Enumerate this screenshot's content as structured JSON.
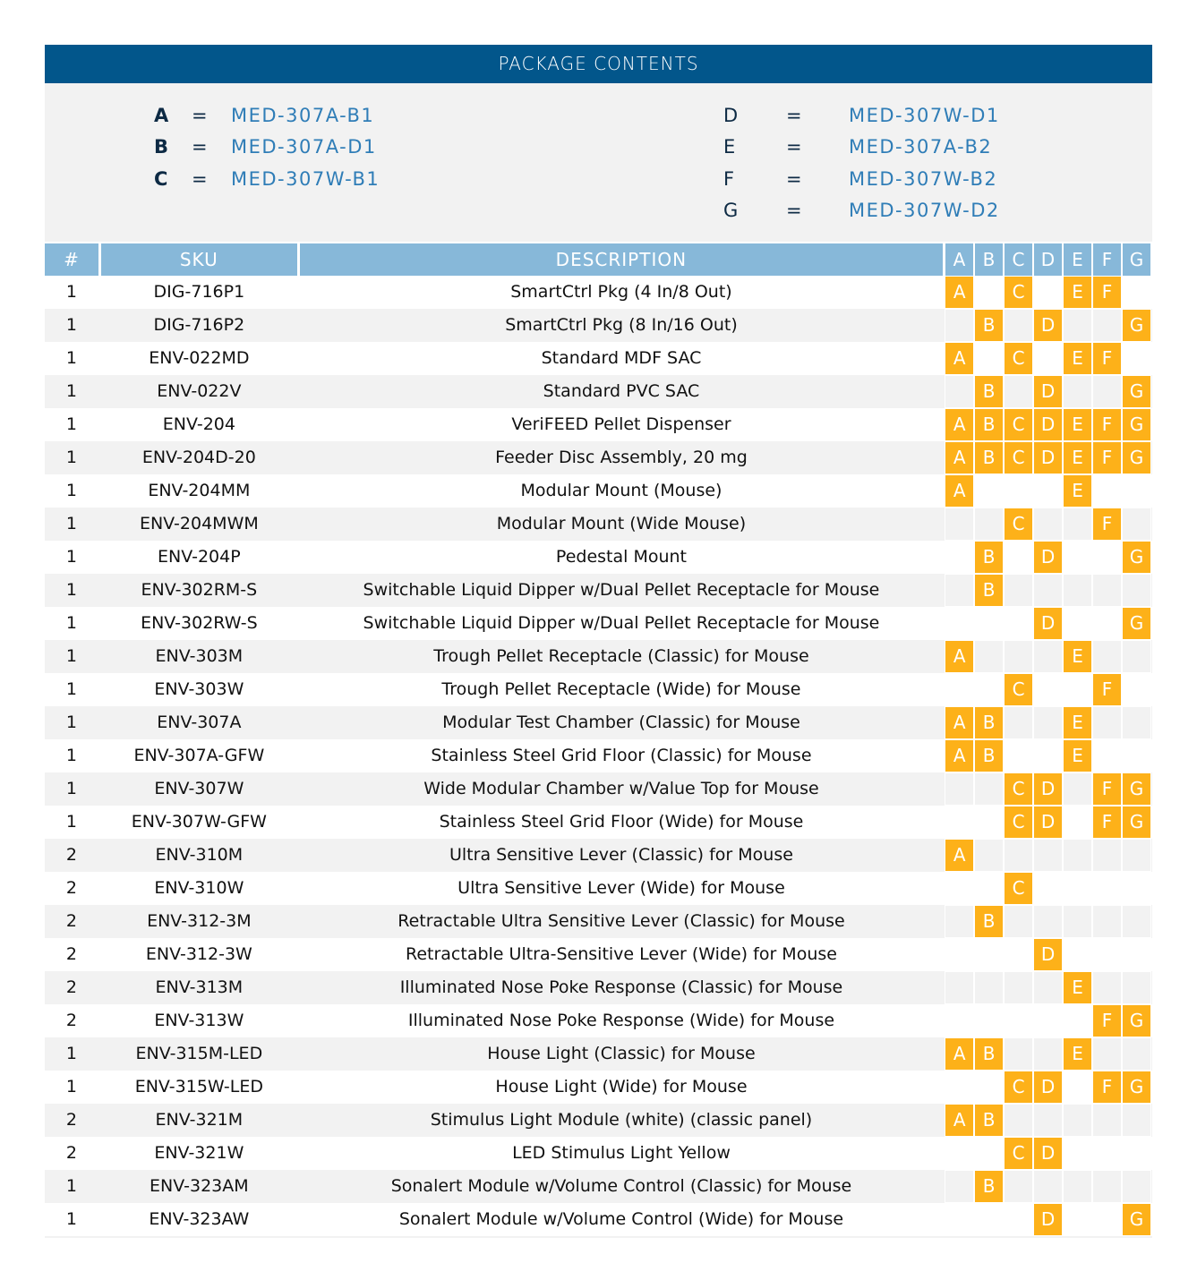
{
  "title": "PACKAGE CONTENTS",
  "legend": [
    {
      "key": "A",
      "eq": "=",
      "value": "MED-307A-B1"
    },
    {
      "key": "B",
      "eq": "=",
      "value": "MED-307A-D1"
    },
    {
      "key": "C",
      "eq": "=",
      "value": "MED-307W-B1"
    },
    {
      "key": "D",
      "eq": "=",
      "value": "MED-307W-D1"
    },
    {
      "key": "E",
      "eq": "=",
      "value": "MED-307A-B2"
    },
    {
      "key": "F",
      "eq": "=",
      "value": "MED-307W-B2"
    },
    {
      "key": "G",
      "eq": "=",
      "value": "MED-307W-D2"
    }
  ],
  "headers": {
    "qty": "#",
    "sku": "SKU",
    "description": "DESCRIPTION",
    "packages": [
      "A",
      "B",
      "C",
      "D",
      "E",
      "F",
      "G"
    ]
  },
  "colors": {
    "title_bg": "#02568b",
    "header_bg": "#87b8d9",
    "mark": "#fdb119",
    "stripe": "#f2f2f2",
    "legend_value": "#2f7db7"
  },
  "rows": [
    {
      "qty": "1",
      "sku": "DIG-716P1",
      "description": "SmartCtrl Pkg (4 In/8 Out)",
      "marks": "ACEF"
    },
    {
      "qty": "1",
      "sku": "DIG-716P2",
      "description": "SmartCtrl Pkg (8 In/16 Out)",
      "marks": "BDG"
    },
    {
      "qty": "1",
      "sku": "ENV-022MD",
      "description": "Standard MDF SAC",
      "marks": "ACEF"
    },
    {
      "qty": "1",
      "sku": "ENV-022V",
      "description": "Standard PVC SAC",
      "marks": "BDG"
    },
    {
      "qty": "1",
      "sku": "ENV-204",
      "description": "VeriFEED Pellet Dispenser",
      "marks": "ABCDEFG"
    },
    {
      "qty": "1",
      "sku": "ENV-204D-20",
      "description": "Feeder Disc Assembly, 20 mg",
      "marks": "ABCDEFG"
    },
    {
      "qty": "1",
      "sku": "ENV-204MM",
      "description": "Modular Mount (Mouse)",
      "marks": "AE"
    },
    {
      "qty": "1",
      "sku": "ENV-204MWM",
      "description": "Modular Mount (Wide Mouse)",
      "marks": "CF"
    },
    {
      "qty": "1",
      "sku": "ENV-204P",
      "description": "Pedestal Mount",
      "marks": "BDG"
    },
    {
      "qty": "1",
      "sku": "ENV-302RM-S",
      "description": "Switchable Liquid Dipper w/Dual Pellet Receptacle for Mouse",
      "marks": "B"
    },
    {
      "qty": "1",
      "sku": "ENV-302RW-S",
      "description": "Switchable Liquid Dipper w/Dual Pellet Receptacle for Mouse",
      "marks": "DG"
    },
    {
      "qty": "1",
      "sku": "ENV-303M",
      "description": "Trough Pellet Receptacle (Classic) for Mouse",
      "marks": "AE"
    },
    {
      "qty": "1",
      "sku": "ENV-303W",
      "description": "Trough Pellet Receptacle (Wide) for Mouse",
      "marks": "CF"
    },
    {
      "qty": "1",
      "sku": "ENV-307A",
      "description": "Modular Test Chamber (Classic) for Mouse",
      "marks": "ABE"
    },
    {
      "qty": "1",
      "sku": "ENV-307A-GFW",
      "description": "Stainless Steel Grid Floor (Classic) for Mouse",
      "marks": "ABE"
    },
    {
      "qty": "1",
      "sku": "ENV-307W",
      "description": "Wide Modular Chamber w/Value Top for Mouse",
      "marks": "CDFG"
    },
    {
      "qty": "1",
      "sku": "ENV-307W-GFW",
      "description": "Stainless Steel Grid Floor (Wide) for Mouse",
      "marks": "CDFG"
    },
    {
      "qty": "2",
      "sku": "ENV-310M",
      "description": "Ultra Sensitive Lever (Classic) for Mouse",
      "marks": "A"
    },
    {
      "qty": "2",
      "sku": "ENV-310W",
      "description": "Ultra Sensitive Lever (Wide) for Mouse",
      "marks": "C"
    },
    {
      "qty": "2",
      "sku": "ENV-312-3M",
      "description": "Retractable Ultra Sensitive Lever (Classic) for Mouse",
      "marks": "B"
    },
    {
      "qty": "2",
      "sku": "ENV-312-3W",
      "description": "Retractable Ultra-Sensitive Lever (Wide) for Mouse",
      "marks": "D"
    },
    {
      "qty": "2",
      "sku": "ENV-313M",
      "description": "Illuminated Nose Poke Response (Classic) for Mouse",
      "marks": "E"
    },
    {
      "qty": "2",
      "sku": "ENV-313W",
      "description": "Illuminated Nose Poke Response (Wide) for Mouse",
      "marks": "FG"
    },
    {
      "qty": "1",
      "sku": "ENV-315M-LED",
      "description": "House Light (Classic) for Mouse",
      "marks": "ABE"
    },
    {
      "qty": "1",
      "sku": "ENV-315W-LED",
      "description": "House Light (Wide) for Mouse",
      "marks": "CDFG"
    },
    {
      "qty": "2",
      "sku": "ENV-321M",
      "description": "Stimulus Light Module (white) (classic panel)",
      "marks": "AB"
    },
    {
      "qty": "2",
      "sku": "ENV-321W",
      "description": "LED Stimulus Light Yellow",
      "marks": "CD"
    },
    {
      "qty": "1",
      "sku": "ENV-323AM",
      "description": "Sonalert Module w/Volume Control (Classic) for Mouse",
      "marks": "B"
    },
    {
      "qty": "1",
      "sku": "ENV-323AW",
      "description": "Sonalert Module w/Volume Control (Wide) for Mouse",
      "marks": "DG"
    }
  ]
}
